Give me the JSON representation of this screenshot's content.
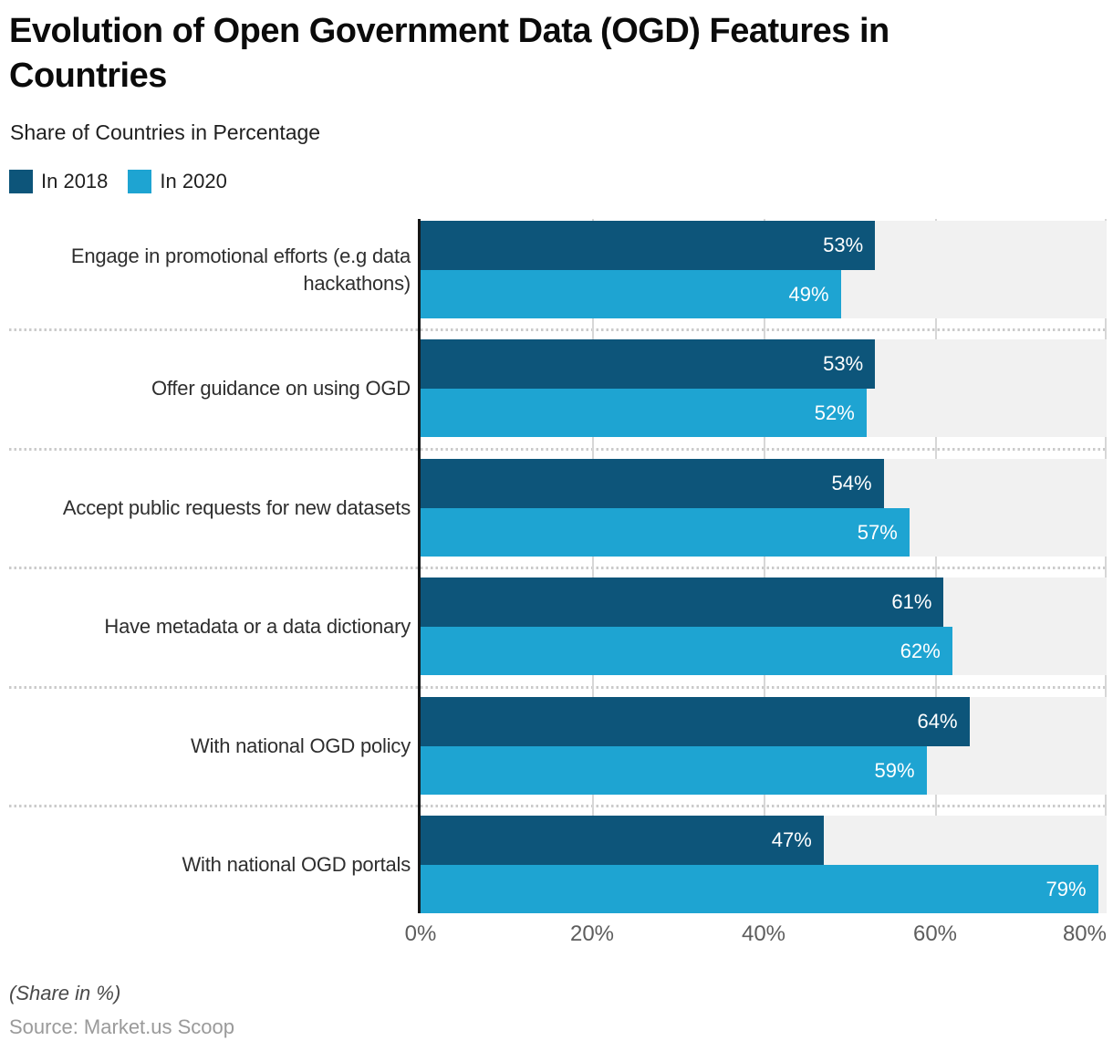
{
  "title": "Evolution of Open Government Data (OGD) Features in Countries",
  "subtitle": "Share of Countries in Percentage",
  "legend": {
    "items": [
      {
        "label": "In 2018",
        "color": "#0d557a"
      },
      {
        "label": "In 2020",
        "color": "#1ea4d2"
      }
    ]
  },
  "footer": {
    "share_note": "(Share in %)",
    "source": "Source: Market.us Scoop"
  },
  "colors": {
    "bar_2018": "#0d557a",
    "bar_2020": "#1ea4d2",
    "row_band": "#f1f1f1",
    "gridline": "#d7d7d7",
    "separator": "#cbcbcb",
    "axis_line": "#161616",
    "value_label": "#ffffff",
    "tick_label": "#5d5d5d"
  },
  "chart_data": {
    "type": "bar",
    "orientation": "horizontal",
    "title": "Evolution of Open Government Data (OGD) Features in Countries",
    "subtitle": "Share of Countries in Percentage",
    "categories": [
      "Engage in promotional efforts (e.g data hackathons)",
      "Offer guidance on using OGD",
      "Accept public requests for new datasets",
      "Have metadata or a data dictionary",
      "With national OGD policy",
      "With national OGD portals"
    ],
    "series": [
      {
        "name": "In 2018",
        "color": "#0d557a",
        "values": [
          53,
          53,
          54,
          61,
          64,
          47
        ],
        "labels": [
          "53%",
          "53%",
          "54%",
          "61%",
          "64%",
          "47%"
        ]
      },
      {
        "name": "In 2020",
        "color": "#1ea4d2",
        "values": [
          49,
          52,
          57,
          62,
          59,
          79
        ],
        "labels": [
          "49%",
          "52%",
          "57%",
          "62%",
          "59%",
          "79%"
        ]
      }
    ],
    "xlim": [
      0,
      80
    ],
    "x_ticks": [
      "0%",
      "20%",
      "40%",
      "60%",
      "80%"
    ],
    "grid": "vertical",
    "legend_position": "top-left"
  }
}
